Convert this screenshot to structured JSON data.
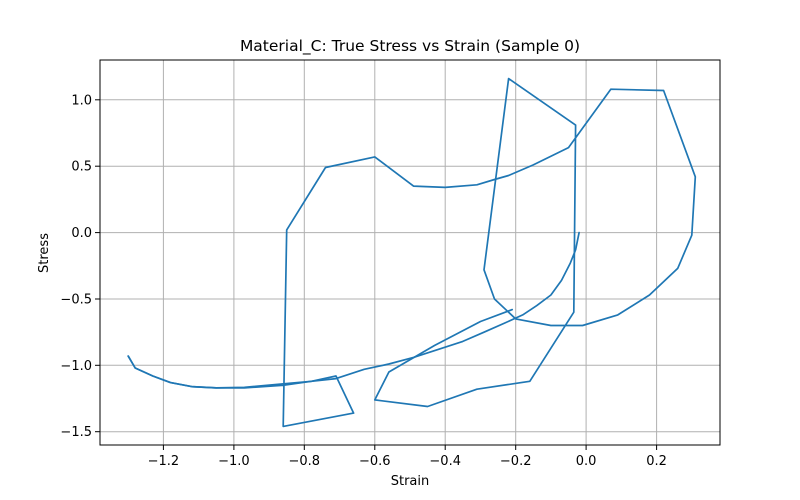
{
  "chart_data": {
    "type": "line",
    "title": "Material_C: True Stress vs Strain (Sample 0)",
    "xlabel": "Strain",
    "ylabel": "Stress",
    "xlim": [
      -1.38,
      0.38
    ],
    "ylim": [
      -1.6,
      1.3
    ],
    "x_ticks": [
      -1.2,
      -1.0,
      -0.8,
      -0.6,
      -0.4,
      -0.2,
      0.0,
      0.2
    ],
    "x_tick_labels": [
      "−1.2",
      "−1.0",
      "−0.8",
      "−0.6",
      "−0.4",
      "−0.2",
      "0.0",
      "0.2"
    ],
    "y_ticks": [
      -1.5,
      -1.0,
      -0.5,
      0.0,
      0.5,
      1.0
    ],
    "y_tick_labels": [
      "−1.5",
      "−1.0",
      "−0.5",
      "0.0",
      "0.5",
      "1.0"
    ],
    "grid": true,
    "series": [
      {
        "color": "#1f77b4",
        "x": [
          -0.02,
          -0.03,
          -0.045,
          -0.07,
          -0.1,
          -0.14,
          -0.18,
          -0.23,
          -0.29,
          -0.35,
          -0.42,
          -0.49,
          -0.56,
          -0.63,
          -0.71,
          -0.78,
          -0.86,
          -0.97,
          -1.05,
          -1.12,
          -1.18,
          -1.23,
          -1.28,
          -1.3
        ],
        "y": [
          0.0,
          -0.13,
          -0.23,
          -0.36,
          -0.47,
          -0.55,
          -0.62,
          -0.68,
          -0.75,
          -0.82,
          -0.88,
          -0.94,
          -0.99,
          -1.03,
          -1.1,
          -1.12,
          -1.14,
          -1.165,
          -1.17,
          -1.16,
          -1.13,
          -1.08,
          -1.02,
          -0.93
        ]
      },
      {
        "color": "#1f77b4",
        "x": [
          -1.3,
          -1.28,
          -1.23,
          -1.18,
          -1.12,
          -1.05,
          -0.97,
          -0.86,
          -0.78,
          -0.71,
          -0.66,
          -0.86,
          -0.85,
          -0.74,
          -0.6,
          -0.49,
          -0.4,
          -0.31,
          -0.26,
          -0.22,
          -0.15,
          -0.05,
          0.07,
          0.22,
          0.31,
          0.3,
          0.26,
          0.18,
          0.09,
          -0.01,
          -0.06,
          -0.1,
          -0.2,
          -0.26,
          -0.29,
          -0.22,
          -0.03,
          -0.035,
          -0.16,
          -0.31,
          -0.45,
          -0.6,
          -0.56,
          -0.43,
          -0.3,
          -0.21
        ],
        "y": [
          -0.93,
          -1.02,
          -1.08,
          -1.13,
          -1.16,
          -1.17,
          -1.17,
          -1.15,
          -1.12,
          -1.08,
          -1.36,
          -1.46,
          0.02,
          0.49,
          0.57,
          0.35,
          0.34,
          0.36,
          0.4,
          0.43,
          0.51,
          0.64,
          1.08,
          1.07,
          0.42,
          -0.02,
          -0.27,
          -0.47,
          -0.62,
          -0.7,
          -0.7,
          -0.7,
          -0.65,
          -0.5,
          -0.28,
          1.16,
          0.81,
          -0.6,
          -1.12,
          -1.18,
          -1.31,
          -1.26,
          -1.05,
          -0.85,
          -0.67,
          -0.58
        ]
      }
    ]
  }
}
